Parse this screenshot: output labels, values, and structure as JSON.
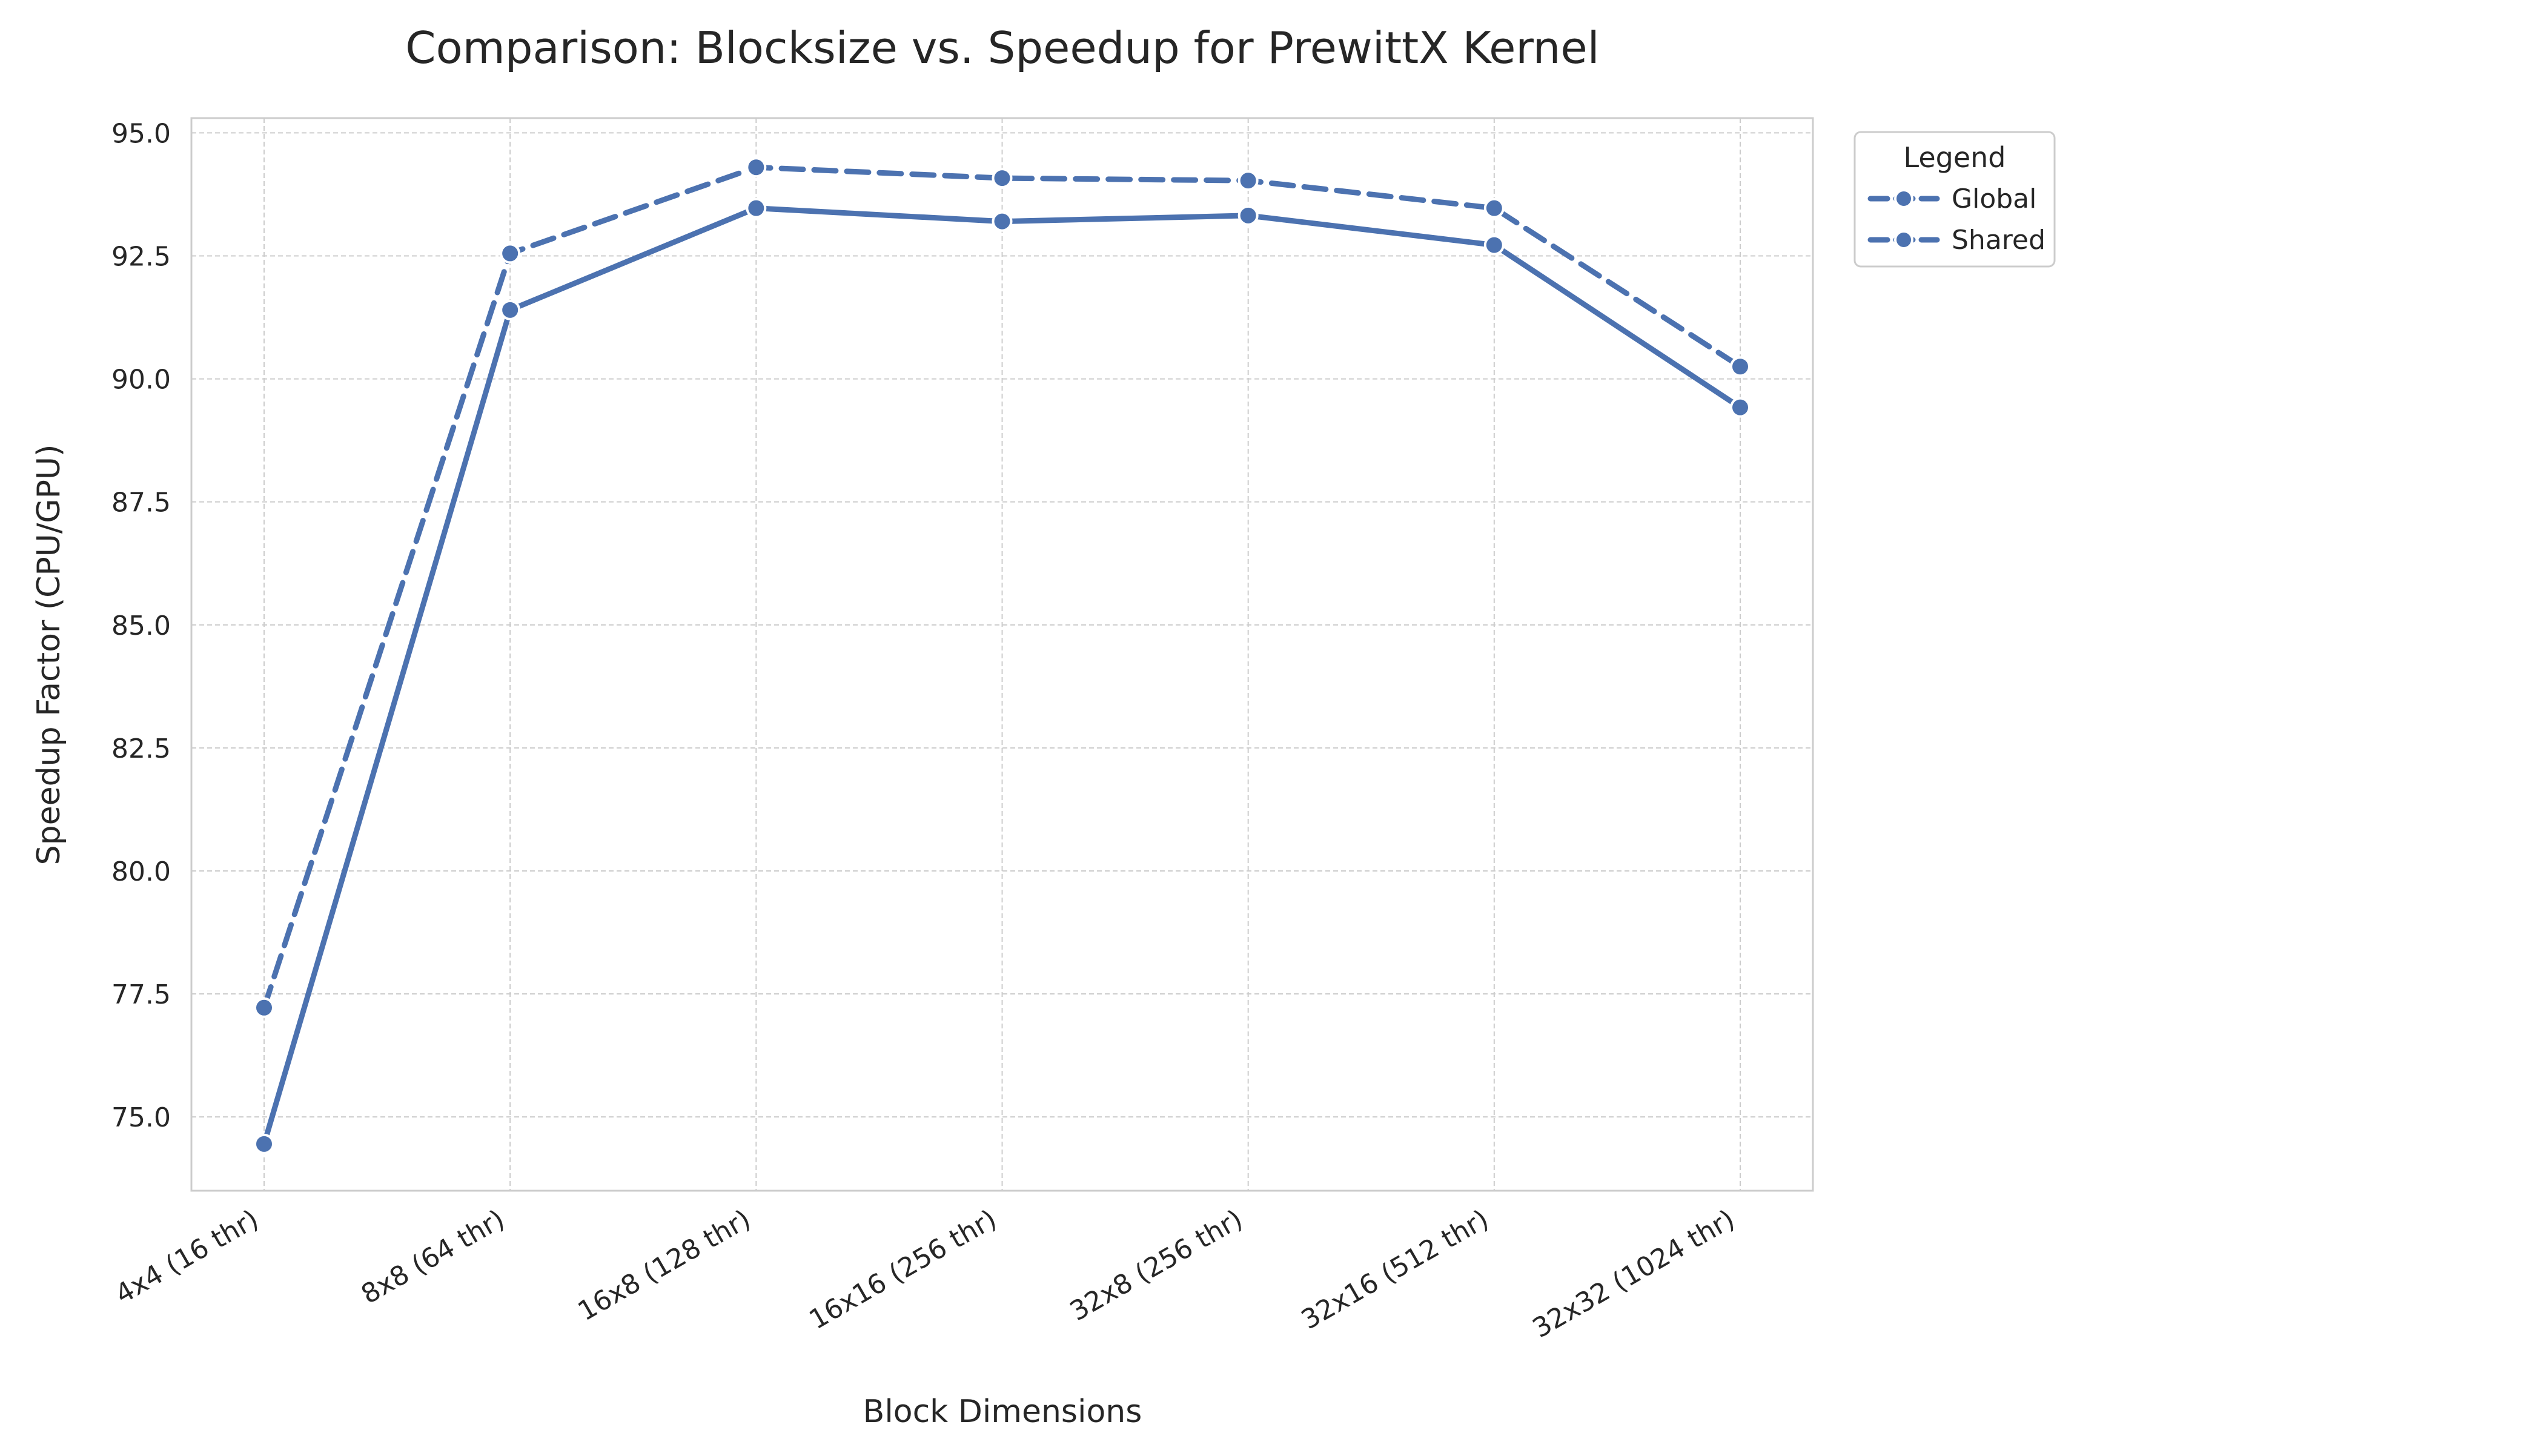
{
  "chart_data": {
    "type": "line",
    "title": "Comparison: Blocksize vs. Speedup for PrewittX Kernel",
    "xlabel": "Block Dimensions",
    "ylabel": "Speedup Factor (CPU/GPU)",
    "categories": [
      "4x4 (16 thr)",
      "8x8 (64 thr)",
      "16x8 (128 thr)",
      "16x16 (256 thr)",
      "32x8 (256 thr)",
      "32x16 (512 thr)",
      "32x32 (1024 thr)"
    ],
    "ylim": [
      73.5,
      95.3
    ],
    "yticks": [
      75.0,
      77.5,
      80.0,
      82.5,
      85.0,
      87.5,
      90.0,
      92.5,
      95.0
    ],
    "ytick_labels": [
      "75.0",
      "77.5",
      "80.0",
      "82.5",
      "85.0",
      "87.5",
      "90.0",
      "92.5",
      "95.0"
    ],
    "grid": true,
    "legend": {
      "title": "Legend",
      "placement": "outside-top-right"
    },
    "series": [
      {
        "name": "Global",
        "style": "solid",
        "color": "#4c72b0",
        "values": [
          74.45,
          91.4,
          93.47,
          93.2,
          93.32,
          92.72,
          89.42
        ]
      },
      {
        "name": "Shared",
        "style": "dashed",
        "color": "#4c72b0",
        "values": [
          77.22,
          92.55,
          94.3,
          94.08,
          94.03,
          93.47,
          90.25
        ]
      }
    ]
  }
}
